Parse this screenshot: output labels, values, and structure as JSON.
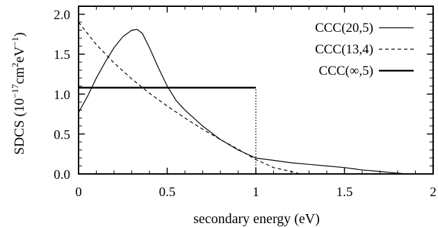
{
  "chart_data": {
    "type": "line",
    "xlabel": "secondary energy (eV)",
    "ylabel": "SDCS (10⁻¹⁷cm²eV⁻¹)",
    "ylabel_parts": {
      "prefix": "SDCS (10",
      "exp1": "−17",
      "mid": "cm",
      "exp2": "2",
      "mid2": "eV",
      "exp3": "−1",
      "suffix": ")"
    },
    "xlim": [
      0,
      2
    ],
    "ylim": [
      0,
      2.1
    ],
    "xticks": [
      0,
      0.5,
      1,
      1.5,
      2
    ],
    "xtick_labels": [
      "0",
      "0.5",
      "1",
      "1.5",
      "2"
    ],
    "yticks": [
      0,
      0.5,
      1.0,
      1.5,
      2.0
    ],
    "ytick_labels": [
      "0.0",
      "0.5",
      "1.0",
      "1.5",
      "2.0"
    ],
    "grid": false,
    "legend_position": "top-right",
    "series": [
      {
        "name": "CCC(20,5)",
        "style": "solid",
        "width": "thin",
        "x": [
          0,
          0.05,
          0.1,
          0.15,
          0.2,
          0.25,
          0.3,
          0.33,
          0.36,
          0.4,
          0.45,
          0.5,
          0.55,
          0.6,
          0.7,
          0.8,
          0.9,
          1.0,
          1.1,
          1.2,
          1.3,
          1.4,
          1.5,
          1.6,
          1.7,
          1.8,
          1.85
        ],
        "y": [
          0.77,
          0.97,
          1.2,
          1.4,
          1.58,
          1.72,
          1.8,
          1.81,
          1.76,
          1.58,
          1.33,
          1.1,
          0.92,
          0.8,
          0.6,
          0.43,
          0.3,
          0.2,
          0.17,
          0.14,
          0.12,
          0.1,
          0.08,
          0.05,
          0.03,
          0.01,
          0.0
        ]
      },
      {
        "name": "CCC(13,4)",
        "style": "dashed",
        "width": "thin",
        "x": [
          0,
          0.1,
          0.2,
          0.3,
          0.4,
          0.5,
          0.6,
          0.7,
          0.8,
          0.9,
          1.0,
          1.1,
          1.2,
          1.25
        ],
        "y": [
          1.9,
          1.62,
          1.39,
          1.19,
          1.01,
          0.85,
          0.7,
          0.56,
          0.43,
          0.31,
          0.18,
          0.08,
          0.03,
          0.0
        ]
      },
      {
        "name": "CCC(∞,5)",
        "style": "solid",
        "width": "thick",
        "x": [
          0,
          1.0
        ],
        "y": [
          1.08,
          1.08
        ]
      }
    ],
    "annotations": [
      {
        "type": "vertical-dotted-line",
        "x": 1.0,
        "y_from": 0,
        "y_to": 1.08
      }
    ]
  }
}
